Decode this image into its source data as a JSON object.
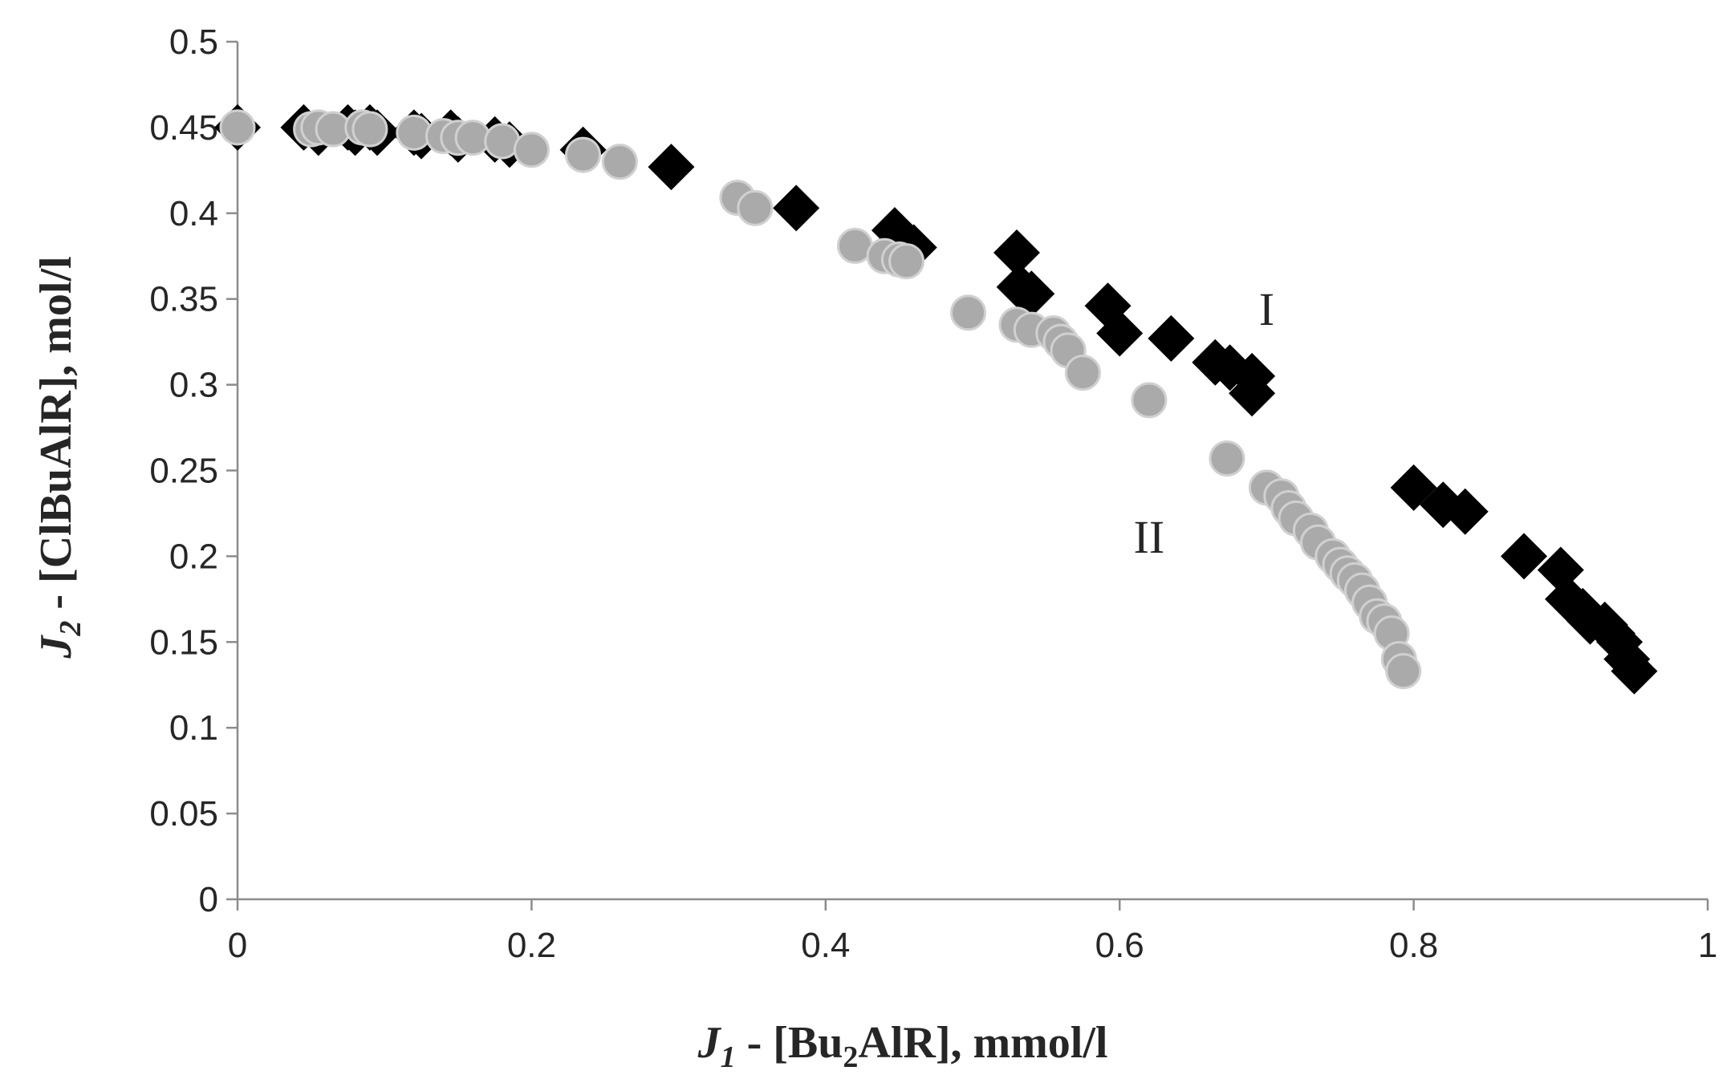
{
  "chart_data": {
    "type": "scatter",
    "xlabel": {
      "var": "J",
      "sub": "1",
      "sep": " - ",
      "pre": "[Bu",
      "sub2": "2",
      "post": "AlR], mmol/l"
    },
    "ylabel": {
      "var": "J",
      "sub": "2",
      "sep": " - ",
      "text": "[ClBuAlR], mol/l"
    },
    "xlim": [
      0,
      1
    ],
    "ylim": [
      0,
      0.5
    ],
    "x_ticks": [
      "0",
      "0.2",
      "0.4",
      "0.6",
      "0.8",
      "1"
    ],
    "y_ticks": [
      "0",
      "0.05",
      "0.1",
      "0.15",
      "0.2",
      "0.25",
      "0.3",
      "0.35",
      "0.4",
      "0.45",
      "0.5"
    ],
    "grid": false,
    "legend": "none",
    "series": [
      {
        "label": "I",
        "marker": "diamond",
        "color": "#000000",
        "points": [
          [
            0.0,
            0.45
          ],
          [
            0.045,
            0.45
          ],
          [
            0.055,
            0.447
          ],
          [
            0.075,
            0.45
          ],
          [
            0.08,
            0.447
          ],
          [
            0.09,
            0.45
          ],
          [
            0.095,
            0.447
          ],
          [
            0.12,
            0.447
          ],
          [
            0.125,
            0.445
          ],
          [
            0.145,
            0.447
          ],
          [
            0.15,
            0.443
          ],
          [
            0.175,
            0.443
          ],
          [
            0.185,
            0.44
          ],
          [
            0.235,
            0.437
          ],
          [
            0.295,
            0.427
          ],
          [
            0.38,
            0.403
          ],
          [
            0.447,
            0.39
          ],
          [
            0.452,
            0.385
          ],
          [
            0.46,
            0.38
          ],
          [
            0.53,
            0.377
          ],
          [
            0.532,
            0.357
          ],
          [
            0.54,
            0.353
          ],
          [
            0.592,
            0.346
          ],
          [
            0.6,
            0.33
          ],
          [
            0.635,
            0.327
          ],
          [
            0.665,
            0.313
          ],
          [
            0.675,
            0.31
          ],
          [
            0.69,
            0.305
          ],
          [
            0.69,
            0.295
          ],
          [
            0.8,
            0.24
          ],
          [
            0.82,
            0.23
          ],
          [
            0.835,
            0.226
          ],
          [
            0.875,
            0.2
          ],
          [
            0.9,
            0.192
          ],
          [
            0.905,
            0.175
          ],
          [
            0.915,
            0.168
          ],
          [
            0.92,
            0.162
          ],
          [
            0.93,
            0.16
          ],
          [
            0.935,
            0.155
          ],
          [
            0.94,
            0.15
          ],
          [
            0.945,
            0.14
          ],
          [
            0.95,
            0.133
          ]
        ]
      },
      {
        "label": "II",
        "marker": "circle",
        "color": "#aaaaaa",
        "points": [
          [
            0.0,
            0.45
          ],
          [
            0.05,
            0.449
          ],
          [
            0.055,
            0.45
          ],
          [
            0.065,
            0.449
          ],
          [
            0.085,
            0.45
          ],
          [
            0.09,
            0.449
          ],
          [
            0.12,
            0.447
          ],
          [
            0.14,
            0.445
          ],
          [
            0.15,
            0.444
          ],
          [
            0.16,
            0.444
          ],
          [
            0.18,
            0.442
          ],
          [
            0.2,
            0.437
          ],
          [
            0.235,
            0.434
          ],
          [
            0.26,
            0.43
          ],
          [
            0.34,
            0.409
          ],
          [
            0.352,
            0.403
          ],
          [
            0.42,
            0.381
          ],
          [
            0.44,
            0.375
          ],
          [
            0.45,
            0.373
          ],
          [
            0.455,
            0.372
          ],
          [
            0.497,
            0.342
          ],
          [
            0.53,
            0.335
          ],
          [
            0.54,
            0.332
          ],
          [
            0.555,
            0.33
          ],
          [
            0.56,
            0.325
          ],
          [
            0.565,
            0.32
          ],
          [
            0.575,
            0.307
          ],
          [
            0.62,
            0.291
          ],
          [
            0.673,
            0.257
          ],
          [
            0.7,
            0.24
          ],
          [
            0.71,
            0.235
          ],
          [
            0.715,
            0.228
          ],
          [
            0.72,
            0.222
          ],
          [
            0.73,
            0.215
          ],
          [
            0.735,
            0.208
          ],
          [
            0.745,
            0.2
          ],
          [
            0.75,
            0.195
          ],
          [
            0.755,
            0.19
          ],
          [
            0.76,
            0.186
          ],
          [
            0.765,
            0.18
          ],
          [
            0.77,
            0.173
          ],
          [
            0.775,
            0.165
          ],
          [
            0.78,
            0.162
          ],
          [
            0.785,
            0.155
          ],
          [
            0.79,
            0.14
          ],
          [
            0.793,
            0.133
          ]
        ]
      }
    ],
    "annotations": [
      {
        "text": "I",
        "x": 0.7,
        "y": 0.335
      },
      {
        "text": "II",
        "x": 0.62,
        "y": 0.202
      }
    ]
  }
}
